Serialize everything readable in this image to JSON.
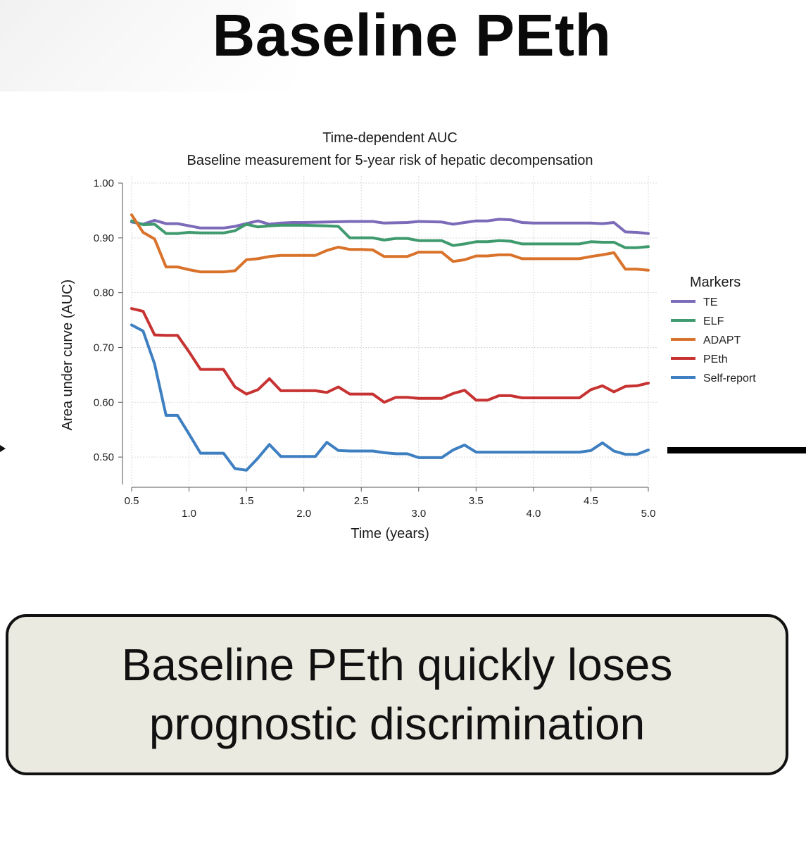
{
  "slide": {
    "title": "Baseline PEth",
    "conclusion_line1": "Baseline PEth quickly loses",
    "conclusion_line2": "prognostic discrimination"
  },
  "chart_data": {
    "type": "line",
    "title": "Time-dependent AUC",
    "subtitle": "Baseline measurement for 5-year risk of hepatic decompensation",
    "xlabel": "Time (years)",
    "ylabel": "Area under curve (AUC)",
    "xlim": [
      0.5,
      5.0
    ],
    "ylim": [
      0.45,
      1.0
    ],
    "x_ticks": [
      "0.5",
      "1.0",
      "1.5",
      "2.0",
      "2.5",
      "3.0",
      "3.5",
      "4.0",
      "4.5",
      "5.0"
    ],
    "y_ticks": [
      "0.50",
      "0.60",
      "0.70",
      "0.80",
      "0.90",
      "1.00"
    ],
    "grid": true,
    "legend_title": "Markers",
    "legend_position": "right",
    "series": [
      {
        "name": "TE",
        "color": "#7b6bb8",
        "points": [
          [
            0.5,
            0.929
          ],
          [
            0.6,
            0.925
          ],
          [
            0.7,
            0.932
          ],
          [
            0.8,
            0.926
          ],
          [
            0.9,
            0.926
          ],
          [
            1.0,
            0.922
          ],
          [
            1.1,
            0.918
          ],
          [
            1.2,
            0.918
          ],
          [
            1.3,
            0.918
          ],
          [
            1.4,
            0.921
          ],
          [
            1.5,
            0.926
          ],
          [
            1.6,
            0.931
          ],
          [
            1.7,
            0.925
          ],
          [
            1.8,
            0.927
          ],
          [
            1.9,
            0.928
          ],
          [
            2.0,
            0.928
          ],
          [
            2.2,
            0.929
          ],
          [
            2.4,
            0.93
          ],
          [
            2.6,
            0.93
          ],
          [
            2.7,
            0.927
          ],
          [
            2.9,
            0.928
          ],
          [
            3.0,
            0.93
          ],
          [
            3.2,
            0.929
          ],
          [
            3.3,
            0.925
          ],
          [
            3.4,
            0.928
          ],
          [
            3.5,
            0.931
          ],
          [
            3.6,
            0.931
          ],
          [
            3.7,
            0.934
          ],
          [
            3.8,
            0.933
          ],
          [
            3.9,
            0.928
          ],
          [
            4.0,
            0.927
          ],
          [
            4.5,
            0.927
          ],
          [
            4.6,
            0.926
          ],
          [
            4.7,
            0.928
          ],
          [
            4.8,
            0.911
          ],
          [
            4.9,
            0.91
          ],
          [
            5.0,
            0.908
          ]
        ]
      },
      {
        "name": "ELF",
        "color": "#3f9a6e",
        "points": [
          [
            0.5,
            0.931
          ],
          [
            0.6,
            0.924
          ],
          [
            0.7,
            0.925
          ],
          [
            0.8,
            0.908
          ],
          [
            0.9,
            0.908
          ],
          [
            1.0,
            0.91
          ],
          [
            1.1,
            0.909
          ],
          [
            1.2,
            0.909
          ],
          [
            1.3,
            0.909
          ],
          [
            1.4,
            0.913
          ],
          [
            1.5,
            0.925
          ],
          [
            1.6,
            0.92
          ],
          [
            1.7,
            0.922
          ],
          [
            1.8,
            0.923
          ],
          [
            1.9,
            0.923
          ],
          [
            2.0,
            0.923
          ],
          [
            2.2,
            0.922
          ],
          [
            2.3,
            0.921
          ],
          [
            2.4,
            0.9
          ],
          [
            2.5,
            0.9
          ],
          [
            2.6,
            0.9
          ],
          [
            2.7,
            0.896
          ],
          [
            2.8,
            0.899
          ],
          [
            2.9,
            0.899
          ],
          [
            3.0,
            0.895
          ],
          [
            3.1,
            0.895
          ],
          [
            3.2,
            0.895
          ],
          [
            3.3,
            0.886
          ],
          [
            3.4,
            0.889
          ],
          [
            3.5,
            0.893
          ],
          [
            3.6,
            0.893
          ],
          [
            3.7,
            0.895
          ],
          [
            3.8,
            0.894
          ],
          [
            3.9,
            0.889
          ],
          [
            4.0,
            0.889
          ],
          [
            4.4,
            0.889
          ],
          [
            4.5,
            0.893
          ],
          [
            4.6,
            0.892
          ],
          [
            4.7,
            0.892
          ],
          [
            4.8,
            0.882
          ],
          [
            4.9,
            0.882
          ],
          [
            5.0,
            0.884
          ]
        ]
      },
      {
        "name": "ADAPT",
        "color": "#d9722a",
        "points": [
          [
            0.5,
            0.942
          ],
          [
            0.6,
            0.91
          ],
          [
            0.7,
            0.898
          ],
          [
            0.8,
            0.847
          ],
          [
            0.9,
            0.847
          ],
          [
            1.0,
            0.842
          ],
          [
            1.1,
            0.838
          ],
          [
            1.2,
            0.838
          ],
          [
            1.3,
            0.838
          ],
          [
            1.4,
            0.84
          ],
          [
            1.5,
            0.86
          ],
          [
            1.6,
            0.862
          ],
          [
            1.7,
            0.866
          ],
          [
            1.8,
            0.868
          ],
          [
            1.9,
            0.868
          ],
          [
            2.0,
            0.868
          ],
          [
            2.1,
            0.868
          ],
          [
            2.2,
            0.877
          ],
          [
            2.3,
            0.883
          ],
          [
            2.4,
            0.879
          ],
          [
            2.5,
            0.879
          ],
          [
            2.6,
            0.878
          ],
          [
            2.7,
            0.866
          ],
          [
            2.8,
            0.866
          ],
          [
            2.9,
            0.866
          ],
          [
            3.0,
            0.874
          ],
          [
            3.1,
            0.874
          ],
          [
            3.2,
            0.874
          ],
          [
            3.3,
            0.857
          ],
          [
            3.4,
            0.86
          ],
          [
            3.5,
            0.867
          ],
          [
            3.6,
            0.867
          ],
          [
            3.7,
            0.869
          ],
          [
            3.8,
            0.869
          ],
          [
            3.9,
            0.862
          ],
          [
            4.0,
            0.862
          ],
          [
            4.4,
            0.862
          ],
          [
            4.5,
            0.866
          ],
          [
            4.6,
            0.869
          ],
          [
            4.7,
            0.873
          ],
          [
            4.8,
            0.843
          ],
          [
            4.9,
            0.843
          ],
          [
            5.0,
            0.841
          ]
        ]
      },
      {
        "name": "PEth",
        "color": "#c73332",
        "points": [
          [
            0.5,
            0.771
          ],
          [
            0.6,
            0.766
          ],
          [
            0.7,
            0.723
          ],
          [
            0.8,
            0.722
          ],
          [
            0.9,
            0.722
          ],
          [
            1.0,
            0.692
          ],
          [
            1.1,
            0.66
          ],
          [
            1.2,
            0.66
          ],
          [
            1.3,
            0.66
          ],
          [
            1.4,
            0.628
          ],
          [
            1.5,
            0.615
          ],
          [
            1.6,
            0.623
          ],
          [
            1.7,
            0.643
          ],
          [
            1.8,
            0.621
          ],
          [
            1.9,
            0.621
          ],
          [
            2.0,
            0.621
          ],
          [
            2.1,
            0.621
          ],
          [
            2.2,
            0.618
          ],
          [
            2.3,
            0.628
          ],
          [
            2.4,
            0.615
          ],
          [
            2.5,
            0.615
          ],
          [
            2.6,
            0.615
          ],
          [
            2.7,
            0.6
          ],
          [
            2.8,
            0.609
          ],
          [
            2.9,
            0.609
          ],
          [
            3.0,
            0.607
          ],
          [
            3.1,
            0.607
          ],
          [
            3.2,
            0.607
          ],
          [
            3.3,
            0.616
          ],
          [
            3.4,
            0.622
          ],
          [
            3.5,
            0.604
          ],
          [
            3.6,
            0.604
          ],
          [
            3.7,
            0.612
          ],
          [
            3.8,
            0.612
          ],
          [
            3.9,
            0.608
          ],
          [
            4.0,
            0.608
          ],
          [
            4.4,
            0.608
          ],
          [
            4.5,
            0.623
          ],
          [
            4.6,
            0.63
          ],
          [
            4.7,
            0.619
          ],
          [
            4.8,
            0.629
          ],
          [
            4.9,
            0.63
          ],
          [
            5.0,
            0.635
          ]
        ]
      },
      {
        "name": "Self-report",
        "color": "#3d7fc1",
        "points": [
          [
            0.5,
            0.741
          ],
          [
            0.6,
            0.73
          ],
          [
            0.7,
            0.67
          ],
          [
            0.8,
            0.576
          ],
          [
            0.9,
            0.576
          ],
          [
            1.0,
            0.542
          ],
          [
            1.1,
            0.507
          ],
          [
            1.2,
            0.507
          ],
          [
            1.3,
            0.507
          ],
          [
            1.4,
            0.479
          ],
          [
            1.5,
            0.476
          ],
          [
            1.6,
            0.498
          ],
          [
            1.7,
            0.523
          ],
          [
            1.8,
            0.501
          ],
          [
            1.9,
            0.501
          ],
          [
            2.0,
            0.501
          ],
          [
            2.1,
            0.501
          ],
          [
            2.2,
            0.527
          ],
          [
            2.3,
            0.512
          ],
          [
            2.4,
            0.511
          ],
          [
            2.5,
            0.511
          ],
          [
            2.6,
            0.511
          ],
          [
            2.7,
            0.508
          ],
          [
            2.8,
            0.506
          ],
          [
            2.9,
            0.506
          ],
          [
            3.0,
            0.499
          ],
          [
            3.1,
            0.499
          ],
          [
            3.2,
            0.499
          ],
          [
            3.3,
            0.513
          ],
          [
            3.4,
            0.522
          ],
          [
            3.5,
            0.509
          ],
          [
            3.6,
            0.509
          ],
          [
            3.7,
            0.509
          ],
          [
            4.4,
            0.509
          ],
          [
            4.5,
            0.512
          ],
          [
            4.6,
            0.526
          ],
          [
            4.7,
            0.511
          ],
          [
            4.8,
            0.505
          ],
          [
            4.9,
            0.505
          ],
          [
            5.0,
            0.513
          ]
        ]
      }
    ]
  }
}
